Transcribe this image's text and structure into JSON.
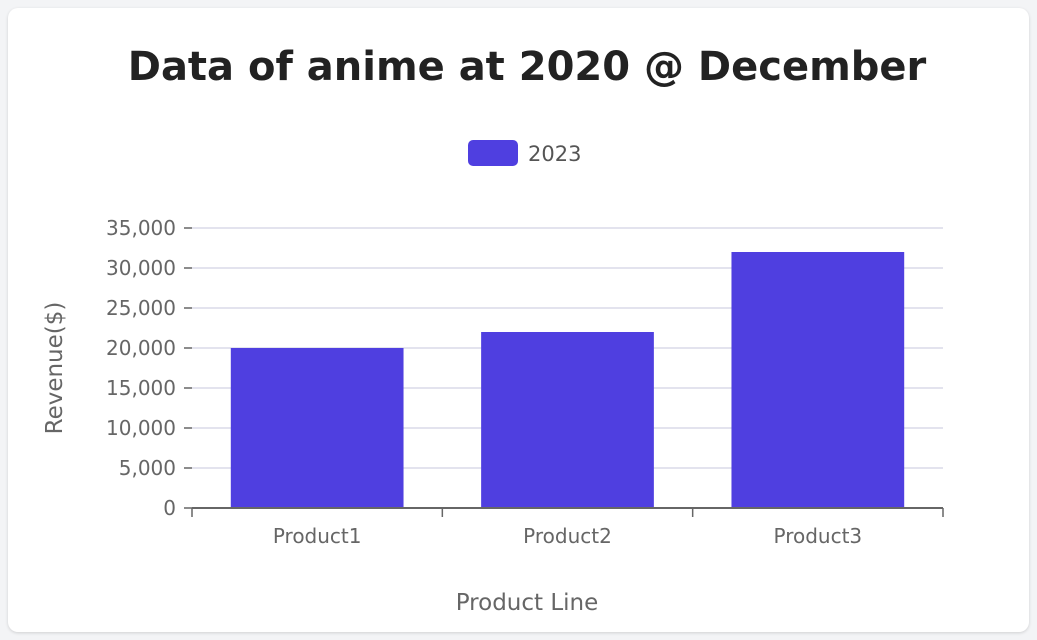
{
  "chart_data": {
    "type": "bar",
    "title": "Data of anime at 2020 @ December",
    "categories": [
      "Product1",
      "Product2",
      "Product3"
    ],
    "series": [
      {
        "name": "2023",
        "values": [
          20000,
          22000,
          32000
        ],
        "color": "#4f3fe0"
      }
    ],
    "xlabel": "Product Line",
    "ylabel": "Revenue($)",
    "ylim": [
      0,
      35000
    ],
    "yticks": [
      "0",
      "5,000",
      "10,000",
      "15,000",
      "20,000",
      "25,000",
      "30,000",
      "35,000"
    ],
    "grid": true,
    "legend": "top"
  }
}
